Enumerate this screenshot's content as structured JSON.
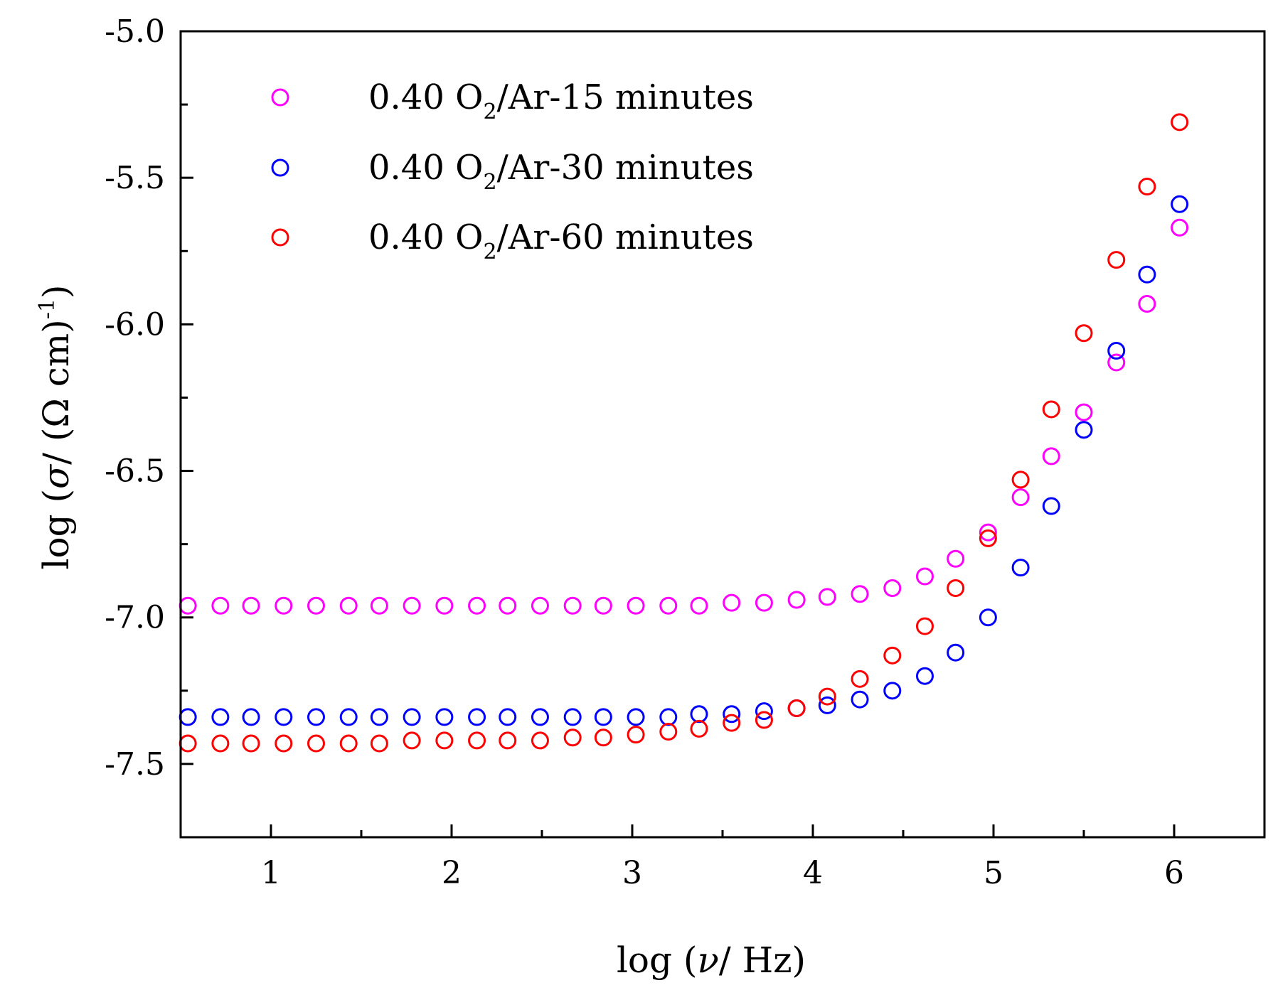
{
  "chart_data": {
    "type": "scatter",
    "xlabel": {
      "pre": "log (",
      "symbol": "ν",
      "post": "/ Hz)"
    },
    "ylabel": {
      "pre": "log (",
      "symbol": "σ",
      "post": "/ (Ω cm)",
      "sup": "-1",
      "close": ")"
    },
    "xlim": [
      0.5,
      6.5
    ],
    "ylim": [
      -7.75,
      -5.0
    ],
    "x_ticks": [
      1,
      2,
      3,
      4,
      5,
      6
    ],
    "x_tick_labels": [
      "1",
      "2",
      "3",
      "4",
      "5",
      "6"
    ],
    "y_ticks": [
      -5.0,
      -5.5,
      -6.0,
      -6.5,
      -7.0,
      -7.5
    ],
    "y_tick_labels": [
      "-5.0",
      "-5.5",
      "-6.0",
      "-6.5",
      "-7.0",
      "-7.5"
    ],
    "legend_position": "top-left",
    "x": [
      0.54,
      0.72,
      0.89,
      1.07,
      1.25,
      1.43,
      1.6,
      1.78,
      1.96,
      2.14,
      2.31,
      2.49,
      2.67,
      2.84,
      3.02,
      3.2,
      3.37,
      3.55,
      3.73,
      3.91,
      4.08,
      4.26,
      4.44,
      4.62,
      4.79,
      4.97,
      5.15,
      5.32,
      5.5,
      5.68,
      5.85,
      6.03
    ],
    "series": [
      {
        "name": "0.40 O2/Ar-15 minutes",
        "legend": {
          "pre": "0.40 O",
          "sub": "2",
          "post": "/Ar-15 minutes"
        },
        "color": "#ff00ff",
        "values": [
          -6.96,
          -6.96,
          -6.96,
          -6.96,
          -6.96,
          -6.96,
          -6.96,
          -6.96,
          -6.96,
          -6.96,
          -6.96,
          -6.96,
          -6.96,
          -6.96,
          -6.96,
          -6.96,
          -6.96,
          -6.95,
          -6.95,
          -6.94,
          -6.93,
          -6.92,
          -6.9,
          -6.86,
          -6.8,
          -6.71,
          -6.59,
          -6.45,
          -6.3,
          -6.13,
          -5.93,
          -5.67
        ]
      },
      {
        "name": "0.40 O2/Ar-30 minutes",
        "legend": {
          "pre": "0.40 O",
          "sub": "2",
          "post": "/Ar-30 minutes"
        },
        "color": "#0000ff",
        "values": [
          -7.34,
          -7.34,
          -7.34,
          -7.34,
          -7.34,
          -7.34,
          -7.34,
          -7.34,
          -7.34,
          -7.34,
          -7.34,
          -7.34,
          -7.34,
          -7.34,
          -7.34,
          -7.34,
          -7.33,
          -7.33,
          -7.32,
          -7.31,
          -7.3,
          -7.28,
          -7.25,
          -7.2,
          -7.12,
          -7.0,
          -6.83,
          -6.62,
          -6.36,
          -6.09,
          -5.83,
          -5.59
        ]
      },
      {
        "name": "0.40 O2/Ar-60 minutes",
        "legend": {
          "pre": "0.40 O",
          "sub": "2",
          "post": "/Ar-60 minutes"
        },
        "color": "#ff0000",
        "values": [
          -7.43,
          -7.43,
          -7.43,
          -7.43,
          -7.43,
          -7.43,
          -7.43,
          -7.42,
          -7.42,
          -7.42,
          -7.42,
          -7.42,
          -7.41,
          -7.41,
          -7.4,
          -7.39,
          -7.38,
          -7.36,
          -7.35,
          -7.31,
          -7.27,
          -7.21,
          -7.13,
          -7.03,
          -6.9,
          -6.73,
          -6.53,
          -6.29,
          -6.03,
          -5.78,
          -5.53,
          -5.31
        ]
      }
    ]
  }
}
